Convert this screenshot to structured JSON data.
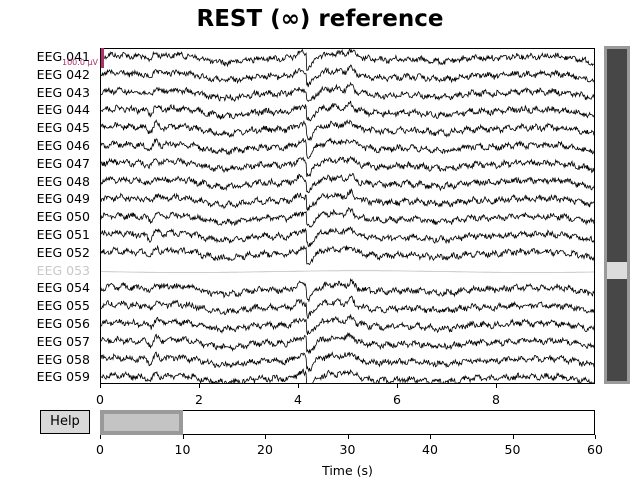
{
  "title": "REST (∞) reference",
  "channels": [
    {
      "name": "EEG 041",
      "bad": false
    },
    {
      "name": "EEG 042",
      "bad": false
    },
    {
      "name": "EEG 043",
      "bad": false
    },
    {
      "name": "EEG 044",
      "bad": false
    },
    {
      "name": "EEG 045",
      "bad": false
    },
    {
      "name": "EEG 046",
      "bad": false
    },
    {
      "name": "EEG 047",
      "bad": false
    },
    {
      "name": "EEG 048",
      "bad": false
    },
    {
      "name": "EEG 049",
      "bad": false
    },
    {
      "name": "EEG 050",
      "bad": false
    },
    {
      "name": "EEG 051",
      "bad": false
    },
    {
      "name": "EEG 052",
      "bad": false
    },
    {
      "name": "EEG 053",
      "bad": true
    },
    {
      "name": "EEG 054",
      "bad": false
    },
    {
      "name": "EEG 055",
      "bad": false
    },
    {
      "name": "EEG 056",
      "bad": false
    },
    {
      "name": "EEG 057",
      "bad": false
    },
    {
      "name": "EEG 058",
      "bad": false
    },
    {
      "name": "EEG 059",
      "bad": false
    }
  ],
  "scale_label": "100.0 µV",
  "trace_colors": {
    "good": "#000000",
    "bad": "#c0c0c0",
    "scalebar": "#b0306a"
  },
  "time_axis": {
    "ticks": [
      "0",
      "2",
      "4",
      "6",
      "8"
    ],
    "range": [
      0,
      10
    ]
  },
  "overview_axis": {
    "ticks": [
      "0",
      "10",
      "20",
      "30",
      "40",
      "50",
      "60"
    ],
    "range": [
      0,
      60
    ],
    "window": [
      0,
      10
    ]
  },
  "xlabel": "Time (s)",
  "help_label": "Help",
  "vertical_scrollbar": {
    "visible_channel_range": [
      41,
      59
    ]
  }
}
